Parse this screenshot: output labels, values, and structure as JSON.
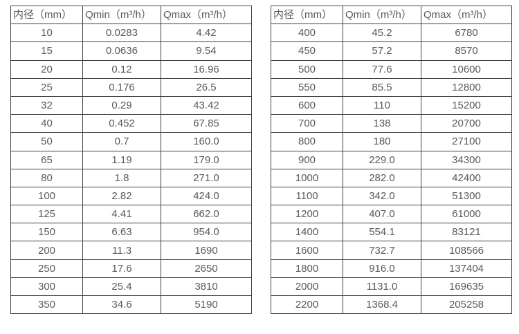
{
  "colors": {
    "background": "#ffffff",
    "table_border": "#3f3f3f",
    "table_text": "#595959"
  },
  "column_keys": [
    "diameter",
    "qmin",
    "qmax"
  ],
  "tables": [
    {
      "name": "small-diameters",
      "headers": {
        "diameter": "内径（mm）",
        "qmin": "Qmin（m³/h）",
        "qmax": "Qmax（m³/h）"
      },
      "rows": [
        [
          "10",
          "0.0283",
          "4.42"
        ],
        [
          "15",
          "0.0636",
          "9.54"
        ],
        [
          "20",
          "0.12",
          "16.96"
        ],
        [
          "25",
          "0.176",
          "26.5"
        ],
        [
          "32",
          "0.29",
          "43.42"
        ],
        [
          "40",
          "0.452",
          "67.85"
        ],
        [
          "50",
          "0.7",
          "160.0"
        ],
        [
          "65",
          "1.19",
          "179.0"
        ],
        [
          "80",
          "1.8",
          "271.0"
        ],
        [
          "100",
          "2.82",
          "424.0"
        ],
        [
          "125",
          "4.41",
          "662.0"
        ],
        [
          "150",
          "6.63",
          "954.0"
        ],
        [
          "200",
          "11.3",
          "1690"
        ],
        [
          "250",
          "17.6",
          "2650"
        ],
        [
          "300",
          "25.4",
          "3810"
        ],
        [
          "350",
          "34.6",
          "5190"
        ]
      ]
    },
    {
      "name": "large-diameters",
      "headers": {
        "diameter": "内径（mm）",
        "qmin": "Qmin（m³/h）",
        "qmax": "Qmax（m³/h）"
      },
      "rows": [
        [
          "400",
          "45.2",
          "6780"
        ],
        [
          "450",
          "57.2",
          "8570"
        ],
        [
          "500",
          "77.6",
          "10600"
        ],
        [
          "550",
          "85.5",
          "12800"
        ],
        [
          "600",
          "110",
          "15200"
        ],
        [
          "700",
          "138",
          "20700"
        ],
        [
          "800",
          "180",
          "27100"
        ],
        [
          "900",
          "229.0",
          "34300"
        ],
        [
          "1000",
          "282.0",
          "42400"
        ],
        [
          "1100",
          "342.0",
          "51300"
        ],
        [
          "1200",
          "407.0",
          "61000"
        ],
        [
          "1400",
          "554.1",
          "83121"
        ],
        [
          "1600",
          "732.7",
          "108566"
        ],
        [
          "1800",
          "916.0",
          "137404"
        ],
        [
          "2000",
          "1131.0",
          "169635"
        ],
        [
          "2200",
          "1368.4",
          "205258"
        ]
      ]
    }
  ]
}
